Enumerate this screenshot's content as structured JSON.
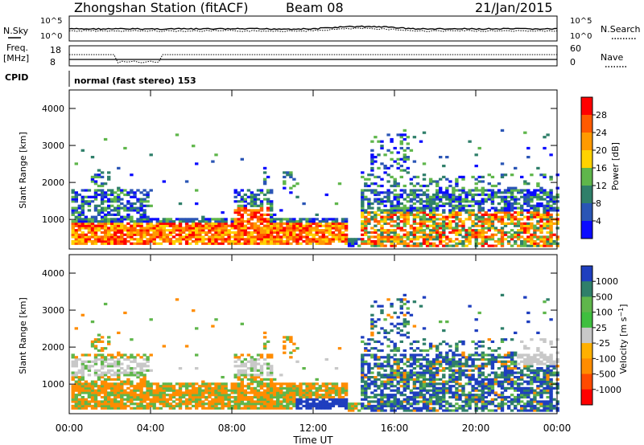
{
  "header": {
    "title": "Zhongshan Station (fitACF)",
    "beam": "Beam 08",
    "date": "21/Jan/2015"
  },
  "noise_panel": {
    "left_label": "N.Sky",
    "right_label": "N.Search",
    "left_ticks": [
      "10^5",
      "10^0"
    ],
    "right_ticks": [
      "10^5",
      "10^0"
    ]
  },
  "freq_panel": {
    "left_label_line1": "Freq.",
    "left_label_line2": "[MHz]",
    "right_label": "Nave",
    "left_ticks": [
      "18",
      "8"
    ],
    "right_ticks": [
      "60",
      "0"
    ]
  },
  "cpid": {
    "label": "CPID",
    "text": "normal (fast stereo) 153"
  },
  "chart_data": [
    {
      "type": "heatmap",
      "quantity": "Power",
      "colorbar_label": "Power [dB]",
      "colorbar_ticks": [
        "28",
        "24",
        "20",
        "16",
        "12",
        "8",
        "4"
      ],
      "colorbar_colors": [
        "#ff0000",
        "#ff5a00",
        "#ff9a00",
        "#ffd200",
        "#5fb64b",
        "#2f7f6a",
        "#2a55b5",
        "#0b0bff"
      ],
      "ylabel": "Slant Range [km]",
      "yticks": [
        "1000",
        "2000",
        "3000",
        "4000"
      ],
      "ylim": [
        200,
        4500
      ],
      "xlim": [
        "00:00",
        "24:00"
      ],
      "scatter_bands": [
        {
          "t0": 0.2,
          "t1": 13.6,
          "r0": 300,
          "r1": 1000,
          "value": "high"
        },
        {
          "t0": 0.2,
          "t1": 3.5,
          "r0": 1200,
          "r1": 1700,
          "value": "medium"
        },
        {
          "t0": 8.0,
          "t1": 9.8,
          "r0": 600,
          "r1": 1300,
          "value": "high"
        },
        {
          "t0": 14.3,
          "t1": 24.0,
          "r0": 300,
          "r1": 1700,
          "value": "mixed"
        },
        {
          "t0": 15.0,
          "t1": 16.8,
          "r0": 2000,
          "r1": 3300,
          "value": "low"
        }
      ]
    },
    {
      "type": "heatmap",
      "quantity": "Velocity",
      "colorbar_label": "Velocity [m s^-1]",
      "colorbar_ticks": [
        "1000",
        "500",
        "100",
        "25",
        "-25",
        "-100",
        "-500",
        "-1000"
      ],
      "colorbar_colors": [
        "#1f3fbf",
        "#2f7f6a",
        "#5fb64b",
        "#3fbf3f",
        "#c8c8c8",
        "#ffb000",
        "#ff8c00",
        "#ff4a00",
        "#ff0000"
      ],
      "ylabel": "Slant Range [km]",
      "yticks": [
        "1000",
        "2000",
        "3000",
        "4000"
      ],
      "ylim": [
        200,
        4500
      ],
      "xlim": [
        "00:00",
        "24:00"
      ],
      "xticks": [
        "00:00",
        "04:00",
        "08:00",
        "12:00",
        "16:00",
        "20:00",
        "00:00"
      ],
      "xlabel": "Time UT"
    }
  ]
}
